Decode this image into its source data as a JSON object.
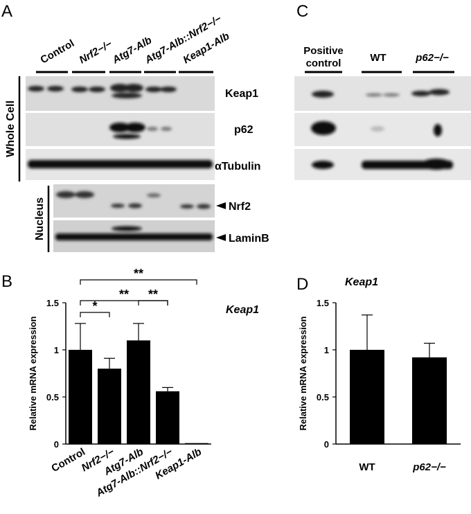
{
  "panels": {
    "A": "A",
    "B": "B",
    "C": "C",
    "D": "D"
  },
  "panel_a": {
    "lanes": [
      "Control",
      "Nrf2−/−",
      "Atg7-Alb",
      "Atg7-Alb::Nrf2−/−",
      "Keap1-Alb"
    ],
    "groups": {
      "whole_cell": "Whole Cell",
      "nucleus": "Nucleus"
    },
    "blots": [
      "Keap1",
      "p62",
      "αTubulin",
      "Nrf2",
      "LaminB"
    ]
  },
  "panel_c": {
    "lanes": [
      "Positive",
      "control",
      "WT",
      "p62−/−"
    ]
  },
  "chart_data": [
    {
      "type": "bar",
      "panel": "B",
      "title": "Keap1",
      "ylabel": "Relative mRNA expression",
      "ylim": [
        0,
        1.5
      ],
      "yticks": [
        "0",
        "0.5",
        "1",
        "1.5"
      ],
      "categories": [
        "Control",
        "Nrf2−/−",
        "Atg7-Alb",
        "Atg7-Alb::Nrf2−/−",
        "Keap1-Alb"
      ],
      "values": [
        1.0,
        0.8,
        1.1,
        0.56,
        0.01
      ],
      "errors": [
        0.28,
        0.11,
        0.18,
        0.04,
        0.0
      ],
      "significance": [
        {
          "from": 0,
          "to": 1,
          "label": "*"
        },
        {
          "from": 0,
          "to": 3,
          "label": "**"
        },
        {
          "from": 2,
          "to": 3,
          "label": "**"
        },
        {
          "from": 0,
          "to": 4,
          "label": "**"
        }
      ],
      "grid": false
    },
    {
      "type": "bar",
      "panel": "D",
      "title": "Keap1",
      "ylabel": "Relative mRNA expression",
      "ylim": [
        0,
        1.5
      ],
      "yticks": [
        "0",
        "0.5",
        "1",
        "1.5"
      ],
      "categories": [
        "WT",
        "p62−/−"
      ],
      "values": [
        1.0,
        0.92
      ],
      "errors": [
        0.37,
        0.15
      ],
      "grid": false
    }
  ]
}
